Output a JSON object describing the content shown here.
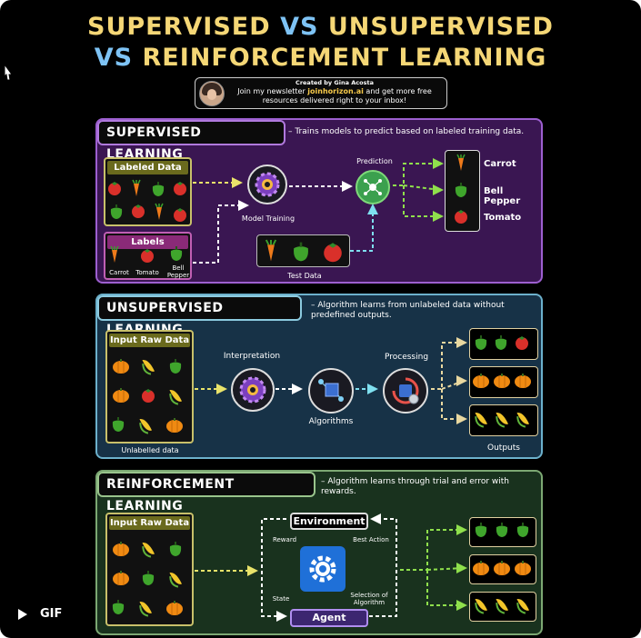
{
  "title": {
    "line1_a": "SUPERVISED",
    "line1_b": "VS",
    "line1_c": "UNSUPERVISED",
    "line2_a": "VS",
    "line2_b": "REINFORCEMENT LEARNING"
  },
  "credit": {
    "created_by": "Created by Gina Acosta",
    "line1_pre": "Join my newsletter ",
    "link": "joinhorizon.ai",
    "line1_post": " and get more free",
    "line2": "resources delivered right to your inbox!"
  },
  "supervised": {
    "heading": "SUPERVISED LEARNING",
    "description": "– Trains models to predict based on labeled training data.",
    "labeled_data": "Labeled Data",
    "labels": "Labels",
    "label_items": [
      "Carrot",
      "Tomato",
      "Bell Pepper"
    ],
    "model_training": "Model Training",
    "prediction": "Prediction",
    "test_data": "Test Data",
    "outputs": [
      "Carrot",
      "Bell Pepper",
      "Tomato"
    ]
  },
  "unsupervised": {
    "heading": "UNSUPERVISED LEARNING",
    "description": "– Algorithm learns from unlabeled data without predefined outputs.",
    "input": "Input Raw Data",
    "unlabelled": "Unlabelled data",
    "interpretation": "Interpretation",
    "algorithms": "Algorithms",
    "processing": "Processing",
    "outputs": "Outputs"
  },
  "reinforcement": {
    "heading": "REINFORCEMENT LEARNING",
    "description": "– Algorithm learns through trial and error with rewards.",
    "input": "Input Raw Data",
    "environment": "Environment",
    "agent": "Agent",
    "reward": "Reward",
    "best_action": "Best Action",
    "state": "State",
    "selection": "Selection of Algorithm"
  },
  "gif_label": "GIF",
  "icons": [
    "cursor-icon",
    "gear-icon",
    "network-icon",
    "cube-icon",
    "cycle-gear-icon",
    "settings-icon",
    "play-icon"
  ],
  "colors": {
    "title_gold": "#f5d776",
    "title_blue": "#7ec3f5",
    "supervised_bg": "#3a1652",
    "unsupervised_bg": "#173247",
    "reinforcement_bg": "#19321e",
    "arrow_yellow": "#e9e36a",
    "arrow_green": "#8fe04c",
    "arrow_cyan": "#7fe0f0"
  }
}
